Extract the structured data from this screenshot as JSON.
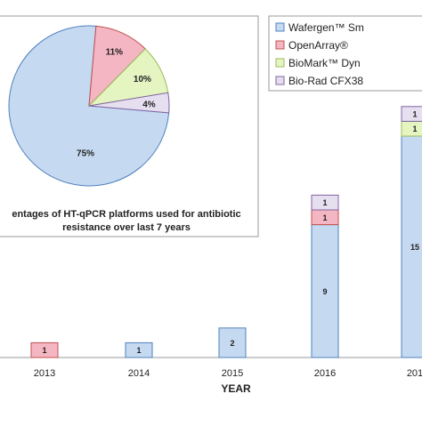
{
  "colors": {
    "wafergen": "#c5d9f1",
    "wafergen_stroke": "#4f81bd",
    "openarray": "#f4b6c2",
    "openarray_stroke": "#c0504d",
    "biomark": "#e4f5c2",
    "biomark_stroke": "#9bbb59",
    "biorad": "#e6dff0",
    "biorad_stroke": "#8064a2"
  },
  "legend": {
    "items": [
      {
        "key": "wafergen",
        "label": "Wafergen™ Sm"
      },
      {
        "key": "openarray",
        "label": "OpenArray®"
      },
      {
        "key": "biomark",
        "label": "BioMark™ Dyn"
      },
      {
        "key": "biorad",
        "label": "Bio-Rad CFX38"
      }
    ]
  },
  "inset": {
    "caption_line1": "entages of HT-qPCR platforms used for antibiotic",
    "caption_line2": "resistance over last 7 years"
  },
  "chart_data": [
    {
      "type": "bar",
      "stacked": true,
      "xlabel": "YEAR",
      "categories": [
        "2013",
        "2014",
        "2015",
        "2016",
        "201"
      ],
      "series": [
        {
          "name": "Wafergen™ Sm",
          "key": "wafergen",
          "values": [
            0,
            1,
            2,
            9,
            15
          ],
          "labels": [
            "",
            "1",
            "2",
            "9",
            "15"
          ]
        },
        {
          "name": "OpenArray®",
          "key": "openarray",
          "values": [
            1,
            0,
            0,
            1,
            0
          ],
          "labels": [
            "1",
            "",
            "",
            "1",
            ""
          ]
        },
        {
          "name": "BioMark™ Dyn",
          "key": "biomark",
          "values": [
            0,
            0,
            0,
            0,
            1
          ],
          "labels": [
            "",
            "",
            "",
            "",
            "1"
          ]
        },
        {
          "name": "Bio-Rad CFX38",
          "key": "biorad",
          "values": [
            0,
            0,
            0,
            1,
            1
          ],
          "labels": [
            "",
            "",
            "",
            "1",
            "1"
          ]
        }
      ]
    },
    {
      "type": "pie",
      "slices": [
        {
          "name": "Wafergen™ Sm",
          "key": "wafergen",
          "value": 75,
          "label": "75%"
        },
        {
          "name": "OpenArray®",
          "key": "openarray",
          "value": 11,
          "label": "11%"
        },
        {
          "name": "BioMark™ Dyn",
          "key": "biomark",
          "value": 10,
          "label": "10%"
        },
        {
          "name": "Bio-Rad CFX38",
          "key": "biorad",
          "value": 4,
          "label": "4%"
        }
      ]
    }
  ]
}
